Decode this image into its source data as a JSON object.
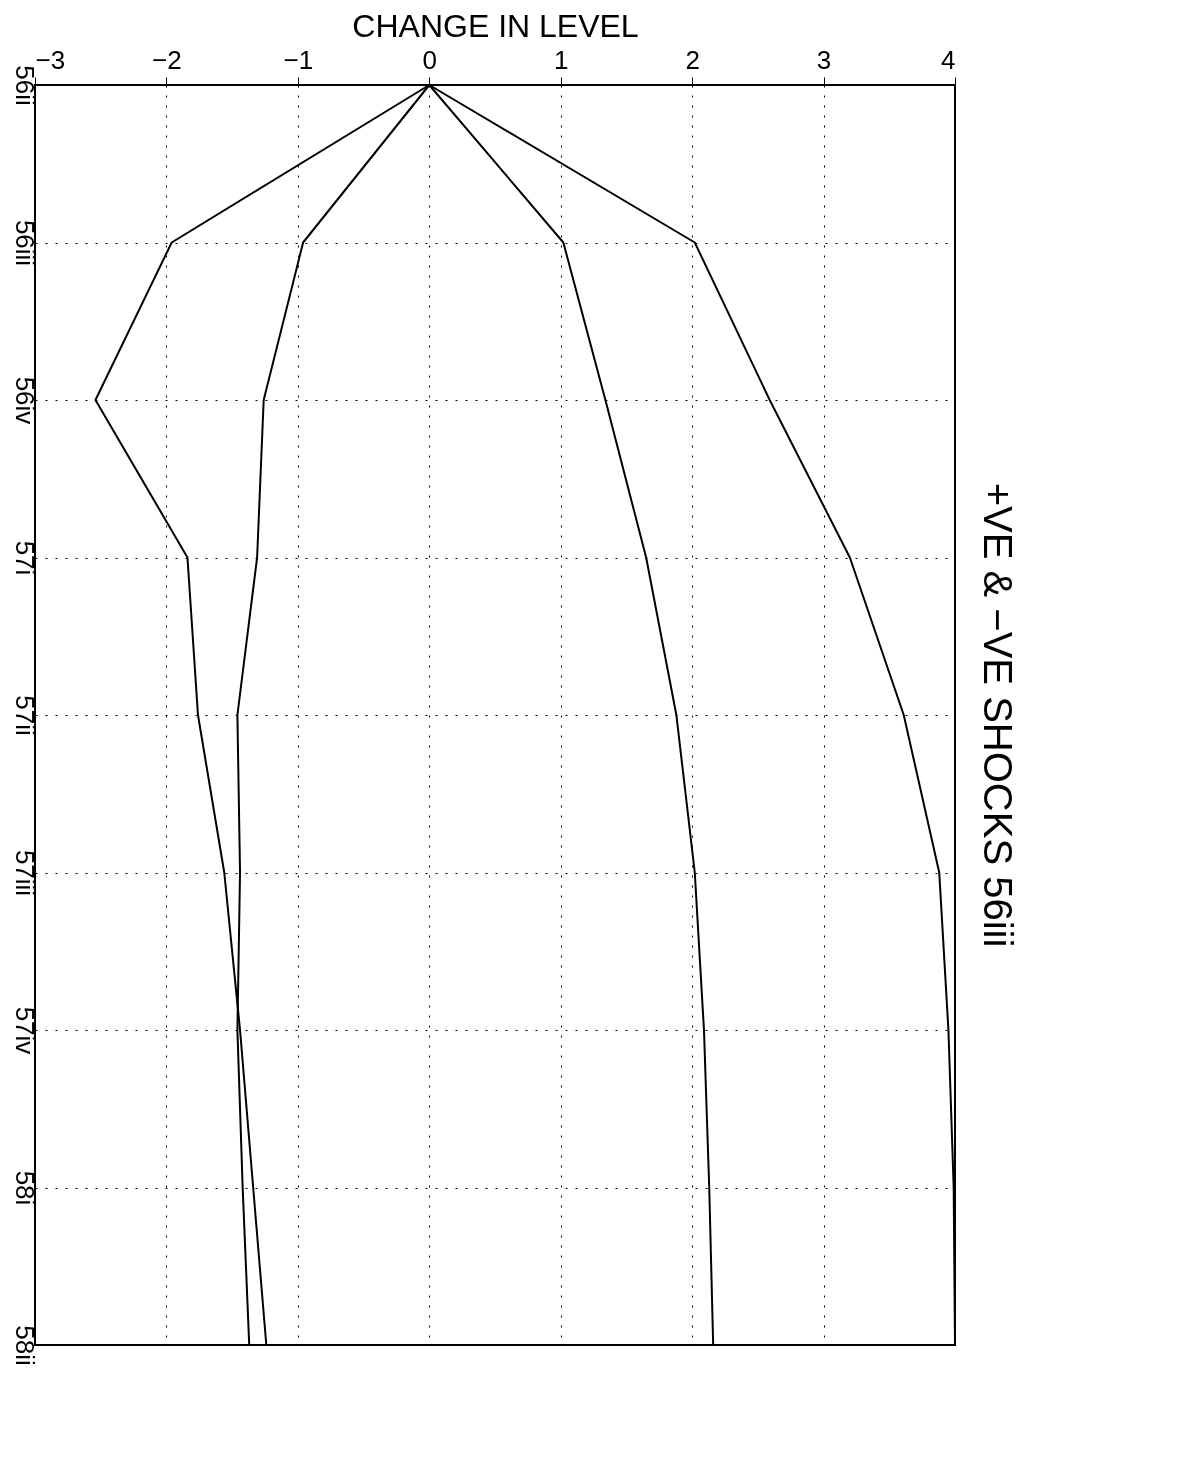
{
  "chart_data": {
    "type": "line",
    "orientation": "horizontal",
    "title": "+VE & −VE SHOCKS 56iii",
    "xlabel": "CHANGE IN LEVEL",
    "categories": [
      "56ii",
      "56iii",
      "56iv",
      "57i",
      "57ii",
      "57iii",
      "57iv",
      "58i",
      "58ii"
    ],
    "xlim": [
      -3,
      4
    ],
    "xticks": [
      -3,
      -2,
      -1,
      0,
      1,
      2,
      3,
      4
    ],
    "grid": true,
    "line_style": "solid",
    "series": [
      {
        "color": "#000000",
        "values": [
          0,
          -1.96,
          -2.54,
          -1.84,
          -1.76,
          -1.56,
          -1.44,
          -1.34,
          -1.24
        ]
      },
      {
        "color": "#000000",
        "values": [
          0,
          -0.96,
          -1.26,
          -1.31,
          -1.46,
          -1.44,
          -1.46,
          -1.42,
          -1.37
        ]
      },
      {
        "color": "#000000",
        "values": [
          0,
          1.02,
          1.34,
          1.65,
          1.88,
          2.02,
          2.09,
          2.13,
          2.16
        ]
      },
      {
        "color": "#000000",
        "values": [
          0,
          2.02,
          2.59,
          3.2,
          3.61,
          3.88,
          3.95,
          3.99,
          4.0
        ]
      }
    ]
  }
}
